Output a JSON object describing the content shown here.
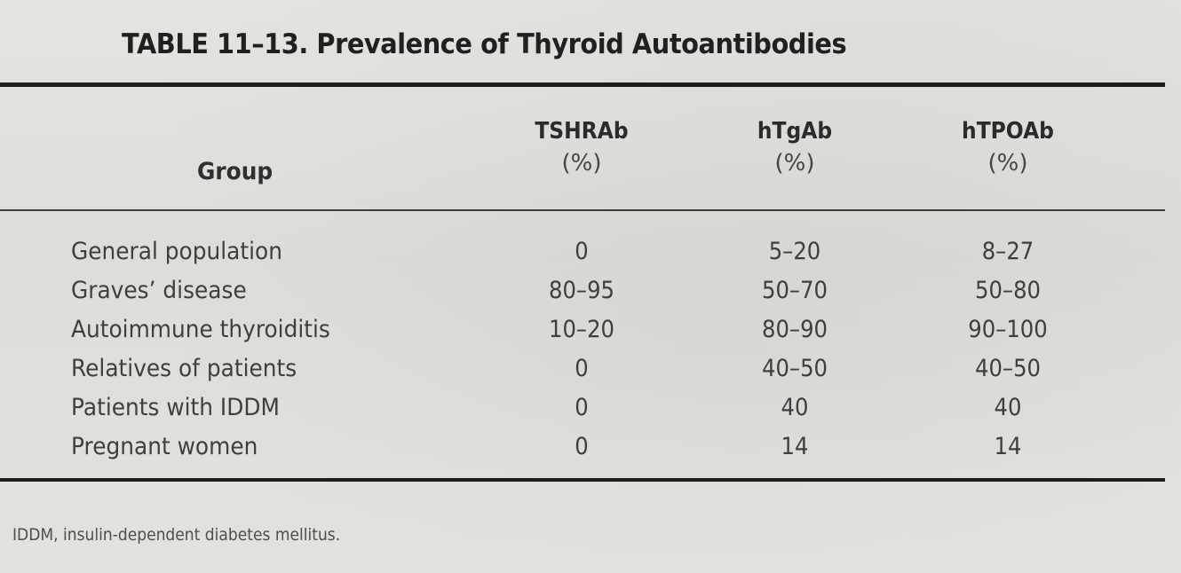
{
  "table": {
    "title": "TABLE 11–13. Prevalence of Thyroid Autoantibodies",
    "columns": [
      {
        "name": "Group",
        "unit": ""
      },
      {
        "name": "TSHRAb",
        "unit": "(%)"
      },
      {
        "name": "hTgAb",
        "unit": "(%)"
      },
      {
        "name": "hTPOAb",
        "unit": "(%)"
      }
    ],
    "rows": [
      {
        "group": "General population",
        "tshrab": "0",
        "htgab": "5–20",
        "htpoab": "8–27"
      },
      {
        "group": "Graves’ disease",
        "tshrab": "80–95",
        "htgab": "50–70",
        "htpoab": "50–80"
      },
      {
        "group": "Autoimmune thyroiditis",
        "tshrab": "10–20",
        "htgab": "80–90",
        "htpoab": "90–100"
      },
      {
        "group": "Relatives of patients",
        "tshrab": "0",
        "htgab": "40–50",
        "htpoab": "40–50"
      },
      {
        "group": "Patients with IDDM",
        "tshrab": "0",
        "htgab": "40",
        "htpoab": "40"
      },
      {
        "group": "Pregnant women",
        "tshrab": "0",
        "htgab": "14",
        "htpoab": "14"
      }
    ],
    "footnote": "IDDM, insulin-dependent diabetes mellitus."
  }
}
